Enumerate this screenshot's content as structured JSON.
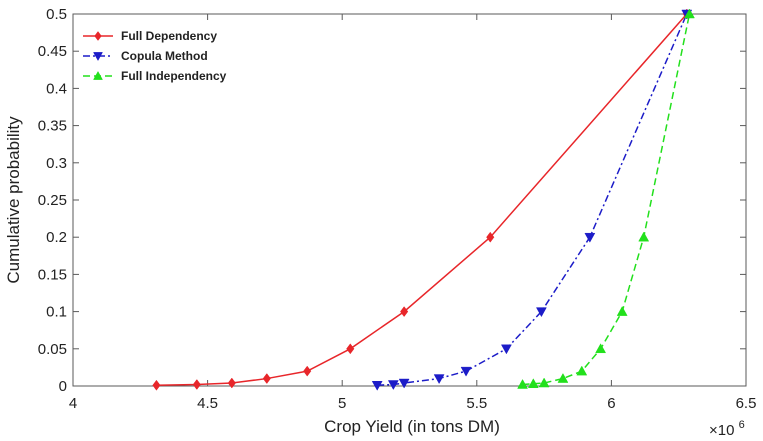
{
  "chart_data": {
    "type": "line",
    "title": "",
    "xlabel": "Crop Yield (in tons DM)",
    "ylabel": "Cumulative probability",
    "x_multiplier_base": "×10",
    "x_multiplier_exp": "6",
    "xlim": [
      4,
      6.5
    ],
    "ylim": [
      0,
      0.5
    ],
    "xticks": [
      "4",
      "4.5",
      "5",
      "5.5",
      "6",
      "6.5"
    ],
    "yticks": [
      "0",
      "0.05",
      "0.1",
      "0.15",
      "0.2",
      "0.25",
      "0.3",
      "0.35",
      "0.4",
      "0.45",
      "0.5"
    ],
    "grid": false,
    "legend_position": "top-left",
    "series": [
      {
        "name": "Full Dependency",
        "color": "#e8262a",
        "line_style": "solid",
        "marker": "diamond",
        "x": [
          4.31,
          4.46,
          4.59,
          4.72,
          4.87,
          5.03,
          5.23,
          5.55,
          6.28
        ],
        "y": [
          0.001,
          0.002,
          0.004,
          0.01,
          0.02,
          0.05,
          0.1,
          0.2,
          0.5
        ]
      },
      {
        "name": "Copula Method",
        "color": "#1c1cc8",
        "line_style": "dashdot",
        "marker": "triangle-down",
        "x": [
          5.13,
          5.19,
          5.23,
          5.36,
          5.46,
          5.61,
          5.74,
          5.92,
          6.28
        ],
        "y": [
          0.001,
          0.002,
          0.004,
          0.01,
          0.02,
          0.05,
          0.1,
          0.2,
          0.5
        ]
      },
      {
        "name": "Full Independency",
        "color": "#22e01c",
        "line_style": "dashed",
        "marker": "triangle-up",
        "x": [
          5.67,
          5.71,
          5.75,
          5.82,
          5.89,
          5.96,
          6.04,
          6.12,
          6.29
        ],
        "y": [
          0.002,
          0.003,
          0.004,
          0.01,
          0.02,
          0.05,
          0.1,
          0.2,
          0.5
        ]
      }
    ]
  }
}
